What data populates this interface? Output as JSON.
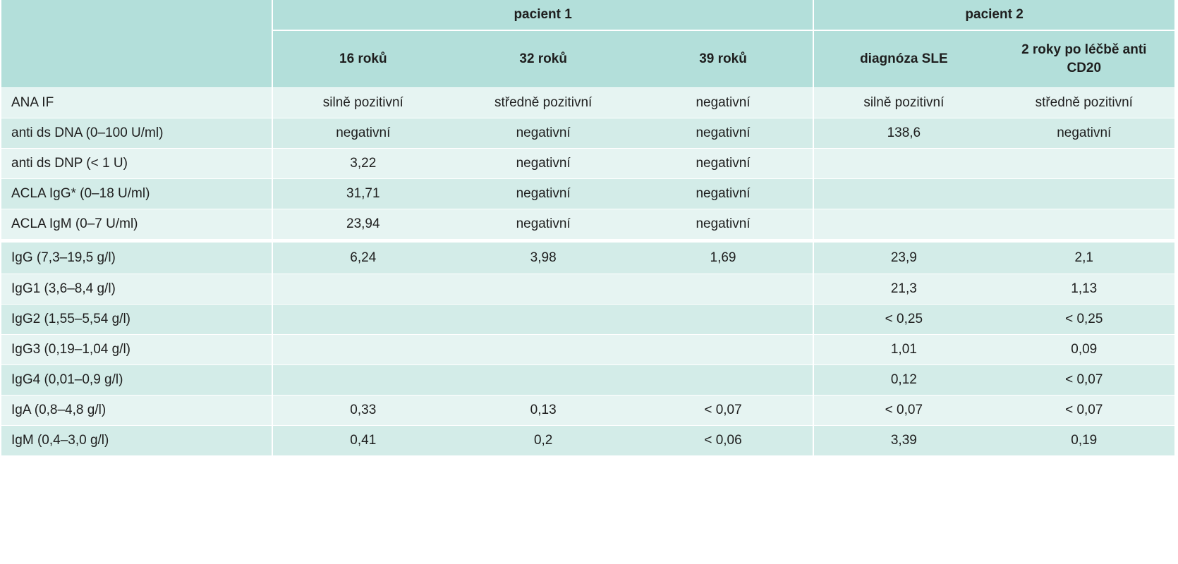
{
  "table": {
    "header_groups": [
      {
        "label": "",
        "span": 1
      },
      {
        "label": "pacient 1",
        "span": 3
      },
      {
        "label": "pacient 2",
        "span": 2
      }
    ],
    "sub_headers": [
      "16 roků",
      "32 roků",
      "39 roků",
      "diagnóza SLE",
      "2 roky po léčbě anti CD20"
    ],
    "rows": [
      {
        "label": "ANA IF",
        "cells": [
          "silně pozitivní",
          "středně pozitivní",
          "negativní",
          "silně pozitivní",
          "středně pozitivní"
        ]
      },
      {
        "label": "anti ds DNA (0–100 U/ml)",
        "cells": [
          "negativní",
          "negativní",
          "negativní",
          "138,6",
          "negativní"
        ]
      },
      {
        "label": "anti ds DNP (< 1 U)",
        "cells": [
          "3,22",
          "negativní",
          "negativní",
          "",
          ""
        ]
      },
      {
        "label": "ACLA IgG* (0–18 U/ml)",
        "cells": [
          "31,71",
          "negativní",
          "negativní",
          "",
          ""
        ]
      },
      {
        "label": "ACLA IgM (0–7 U/ml)",
        "cells": [
          "23,94",
          "negativní",
          "negativní",
          "",
          ""
        ]
      },
      {
        "label": "IgG (7,3–19,5 g/l)",
        "cells": [
          "6,24",
          "3,98",
          "1,69",
          "23,9",
          "2,1"
        ]
      },
      {
        "label": "IgG1 (3,6–8,4 g/l)",
        "cells": [
          "",
          "",
          "",
          "21,3",
          "1,13"
        ]
      },
      {
        "label": "IgG2 (1,55–5,54 g/l)",
        "cells": [
          "",
          "",
          "",
          "< 0,25",
          "< 0,25"
        ]
      },
      {
        "label": "IgG3 (0,19–1,04 g/l)",
        "cells": [
          "",
          "",
          "",
          "1,01",
          "0,09"
        ]
      },
      {
        "label": "IgG4 (0,01–0,9 g/l)",
        "cells": [
          "",
          "",
          "",
          "0,12",
          "< 0,07"
        ]
      },
      {
        "label": "IgA (0,8–4,8 g/l)",
        "cells": [
          "0,33",
          "0,13",
          "< 0,07",
          "< 0,07",
          "< 0,07"
        ]
      },
      {
        "label": "IgM (0,4–3,0 g/l)",
        "cells": [
          "0,41",
          "0,2",
          "< 0,06",
          "3,39",
          "0,19"
        ]
      }
    ],
    "colors": {
      "header_bg": "#b3dfda",
      "row_light": "#e6f4f2",
      "row_dark": "#d3ece8"
    }
  }
}
